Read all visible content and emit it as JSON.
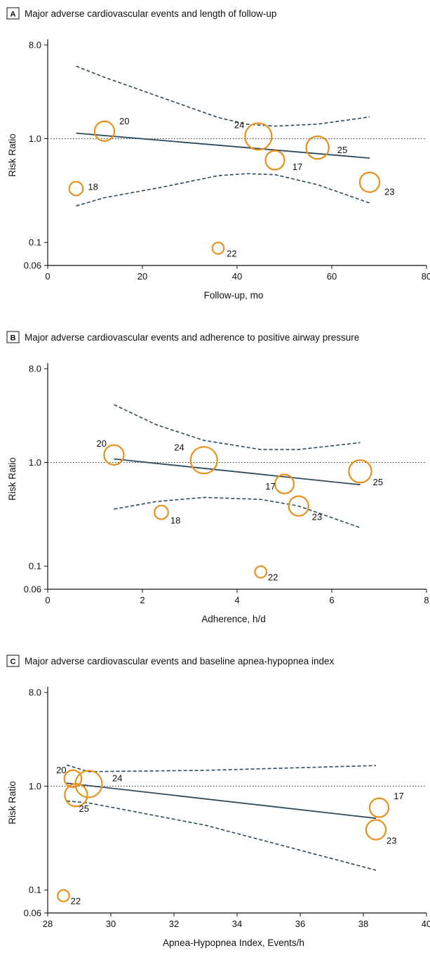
{
  "figure": {
    "ylabel": "Risk Ratio"
  },
  "colors": {
    "point": "#e8901e",
    "line": "#2e4a5c",
    "ref": "#333333",
    "axis": "#111111"
  },
  "chart_data": [
    {
      "type": "scatter",
      "letter": "A",
      "title": "Major adverse cardiovascular events and length of follow-up",
      "xlabel": "Follow-up, mo",
      "ylabel": "Risk Ratio",
      "xlim": [
        0,
        80
      ],
      "ylim": [
        0.06,
        8.0
      ],
      "yscale": "log",
      "xticks": [
        "0",
        "20",
        "40",
        "60",
        "80"
      ],
      "yticks": [
        "8.0",
        "1.0",
        "0.1",
        "0.06"
      ],
      "points": [
        {
          "label": "20",
          "x": 12,
          "y": 1.18,
          "weight": 0.45
        },
        {
          "label": "24",
          "x": 44.5,
          "y": 1.05,
          "weight": 1.0
        },
        {
          "label": "25",
          "x": 57,
          "y": 0.82,
          "weight": 0.65
        },
        {
          "label": "17",
          "x": 48,
          "y": 0.62,
          "weight": 0.4
        },
        {
          "label": "23",
          "x": 68,
          "y": 0.38,
          "weight": 0.45
        },
        {
          "label": "18",
          "x": 6,
          "y": 0.33,
          "weight": 0.15
        },
        {
          "label": "22",
          "x": 36,
          "y": 0.088,
          "weight": 0.08
        }
      ],
      "fit": [
        [
          6,
          1.13
        ],
        [
          68,
          0.65
        ]
      ],
      "upper_ci": [
        [
          6,
          5.0
        ],
        [
          12,
          3.9
        ],
        [
          36,
          1.6
        ],
        [
          42,
          1.38
        ],
        [
          48,
          1.32
        ],
        [
          57,
          1.38
        ],
        [
          68,
          1.62
        ]
      ],
      "lower_ci": [
        [
          6,
          0.225
        ],
        [
          12,
          0.27
        ],
        [
          24,
          0.34
        ],
        [
          36,
          0.44
        ],
        [
          42,
          0.46
        ],
        [
          48,
          0.45
        ],
        [
          57,
          0.36
        ],
        [
          68,
          0.24
        ]
      ],
      "reference_y": 1.0
    },
    {
      "type": "scatter",
      "letter": "B",
      "title": "Major adverse cardiovascular events and adherence to positive airway pressure",
      "xlabel": "Adherence, h/d",
      "ylabel": "Risk Ratio",
      "xlim": [
        0,
        8
      ],
      "ylim": [
        0.06,
        8.0
      ],
      "yscale": "log",
      "xticks": [
        "0",
        "2",
        "4",
        "6",
        "8"
      ],
      "yticks": [
        "8.0",
        "1.0",
        "0.1",
        "0.06"
      ],
      "points": [
        {
          "label": "20",
          "x": 1.4,
          "y": 1.18,
          "weight": 0.45
        },
        {
          "label": "24",
          "x": 3.3,
          "y": 1.05,
          "weight": 1.0
        },
        {
          "label": "25",
          "x": 6.6,
          "y": 0.82,
          "weight": 0.65
        },
        {
          "label": "17",
          "x": 5.0,
          "y": 0.62,
          "weight": 0.4
        },
        {
          "label": "23",
          "x": 5.3,
          "y": 0.38,
          "weight": 0.45
        },
        {
          "label": "18",
          "x": 2.4,
          "y": 0.33,
          "weight": 0.15
        },
        {
          "label": "22",
          "x": 4.5,
          "y": 0.088,
          "weight": 0.08
        }
      ],
      "fit": [
        [
          1.4,
          1.08
        ],
        [
          6.6,
          0.61
        ]
      ],
      "upper_ci": [
        [
          1.4,
          3.6
        ],
        [
          2.3,
          2.3
        ],
        [
          3.3,
          1.63
        ],
        [
          4.5,
          1.33
        ],
        [
          5.3,
          1.33
        ],
        [
          6.6,
          1.55
        ]
      ],
      "lower_ci": [
        [
          1.4,
          0.355
        ],
        [
          2.3,
          0.42
        ],
        [
          3.3,
          0.46
        ],
        [
          4.5,
          0.44
        ],
        [
          5.3,
          0.38
        ],
        [
          6.6,
          0.235
        ]
      ],
      "reference_y": 1.0
    },
    {
      "type": "scatter",
      "letter": "C",
      "title": "Major adverse cardiovascular events and baseline apnea-hypopnea index",
      "xlabel": "Apnea-Hypopnea Index, Events/h",
      "ylabel": "Risk Ratio",
      "xlim": [
        28,
        40
      ],
      "ylim": [
        0.06,
        8.0
      ],
      "yscale": "log",
      "xticks": [
        "28",
        "30",
        "32",
        "34",
        "36",
        "38",
        "40"
      ],
      "yticks": [
        "8.0",
        "1.0",
        "0.1",
        "0.06"
      ],
      "points": [
        {
          "label": "20",
          "x": 28.8,
          "y": 1.18,
          "weight": 0.3
        },
        {
          "label": "24",
          "x": 29.3,
          "y": 1.05,
          "weight": 1.0
        },
        {
          "label": "25",
          "x": 28.9,
          "y": 0.82,
          "weight": 0.65
        },
        {
          "label": "17",
          "x": 38.5,
          "y": 0.62,
          "weight": 0.4
        },
        {
          "label": "23",
          "x": 38.4,
          "y": 0.38,
          "weight": 0.45
        },
        {
          "label": "22",
          "x": 28.5,
          "y": 0.088,
          "weight": 0.08
        }
      ],
      "fit": [
        [
          28.6,
          1.07
        ],
        [
          38.4,
          0.49
        ]
      ],
      "upper_ci": [
        [
          28.6,
          1.6
        ],
        [
          29.3,
          1.38
        ],
        [
          33,
          1.42
        ],
        [
          38.4,
          1.58
        ]
      ],
      "lower_ci": [
        [
          28.6,
          0.72
        ],
        [
          29.3,
          0.69
        ],
        [
          33,
          0.42
        ],
        [
          38.4,
          0.155
        ]
      ],
      "reference_y": 1.0
    }
  ]
}
